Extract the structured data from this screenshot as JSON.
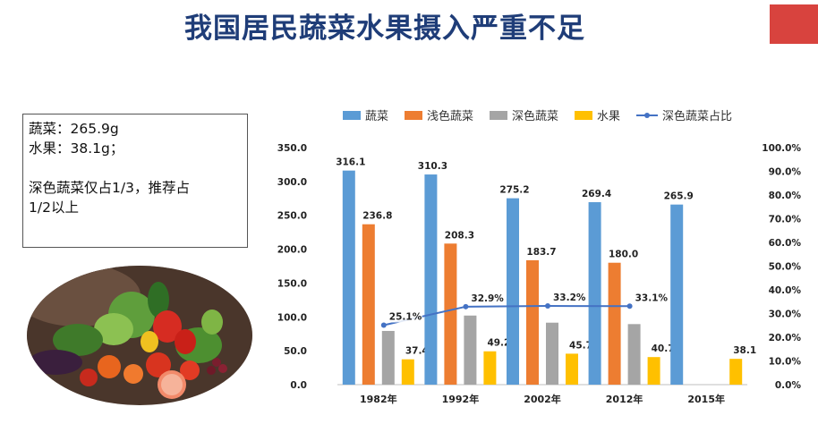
{
  "slide": {
    "title": "我国居民蔬菜水果摄入严重不足",
    "accent_color": "#d8433e",
    "title_color": "#1f3d78"
  },
  "info_box": {
    "line1": "蔬菜：265.9g",
    "line2": "水果：38.1g；",
    "line3": "深色蔬菜仅占1/3，推荐占",
    "line4": "1/2以上"
  },
  "photo": {
    "description_icon": "vegetables-fruits-photo"
  },
  "chart_data": {
    "type": "bar",
    "categories": [
      "1982年",
      "1992年",
      "2002年",
      "2012年",
      "2015年"
    ],
    "series": [
      {
        "name": "蔬菜",
        "color": "#5b9bd5",
        "values": [
          316.1,
          310.3,
          275.2,
          269.4,
          265.9
        ],
        "labels": [
          "316.1",
          "310.3",
          "275.2",
          "269.4",
          "265.9"
        ]
      },
      {
        "name": "浅色蔬菜",
        "color": "#ed7d31",
        "values": [
          236.8,
          208.3,
          183.7,
          180.0,
          null
        ],
        "labels": [
          "236.8",
          "208.3",
          "183.7",
          "180.0",
          ""
        ]
      },
      {
        "name": "深色蔬菜",
        "color": "#a5a5a5",
        "values": [
          79.3,
          102.0,
          91.5,
          89.4,
          null
        ],
        "labels": [
          "",
          "",
          "",
          "",
          ""
        ]
      },
      {
        "name": "水果",
        "color": "#ffc000",
        "values": [
          37.4,
          49.2,
          45.7,
          40.7,
          38.1
        ],
        "labels": [
          "37.4",
          "49.2",
          "45.7",
          "40.7",
          "38.1"
        ]
      }
    ],
    "line_series": {
      "name": "深色蔬菜占比",
      "color": "#4472c4",
      "axis": "right",
      "values": [
        25.1,
        32.9,
        33.2,
        33.1,
        null
      ],
      "labels": [
        "25.1%",
        "32.9%",
        "33.2%",
        "33.1%",
        ""
      ]
    },
    "y_left": {
      "min": 0,
      "max": 350,
      "ticks": [
        "0.0",
        "50.0",
        "100.0",
        "150.0",
        "200.0",
        "250.0",
        "300.0",
        "350.0"
      ]
    },
    "y_right": {
      "min": 0,
      "max": 100,
      "ticks": [
        "0.0%",
        "10.0%",
        "20.0%",
        "30.0%",
        "40.0%",
        "50.0%",
        "60.0%",
        "70.0%",
        "80.0%",
        "90.0%",
        "100.0%"
      ]
    },
    "legend_position": "top",
    "grid": false
  }
}
